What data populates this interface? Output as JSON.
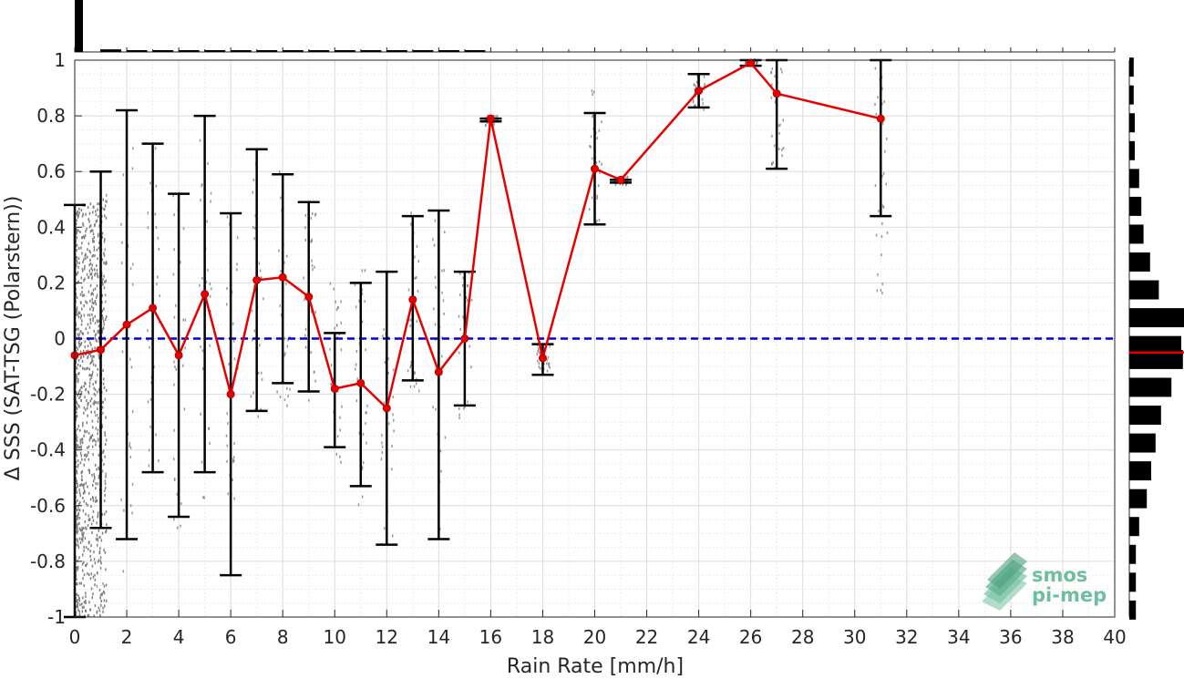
{
  "chart_data": {
    "type": "scatter",
    "xlabel": "Rain Rate [mm/h]",
    "ylabel": "Δ SSS (SAT-TSG (Polarstern))",
    "xlim": [
      0,
      40
    ],
    "ylim": [
      -1,
      1
    ],
    "x_ticks": [
      "0",
      "2",
      "4",
      "6",
      "8",
      "10",
      "12",
      "14",
      "16",
      "18",
      "20",
      "22",
      "24",
      "26",
      "28",
      "30",
      "32",
      "34",
      "36",
      "38",
      "40"
    ],
    "y_ticks": [
      "-1",
      "-0.8",
      "-0.6",
      "-0.4",
      "-0.2",
      "0",
      "0.2",
      "0.4",
      "0.6",
      "0.8",
      "1"
    ],
    "grid": true,
    "zero_line": {
      "y": 0,
      "color": "#0000dd",
      "style": "dashed"
    },
    "series": [
      {
        "color": "#e60000",
        "points": [
          {
            "x": 0,
            "y": -0.06,
            "lo": -1.0,
            "hi": 0.48
          },
          {
            "x": 1,
            "y": -0.04,
            "lo": -0.68,
            "hi": 0.6
          },
          {
            "x": 2,
            "y": 0.05,
            "lo": -0.72,
            "hi": 0.82
          },
          {
            "x": 3,
            "y": 0.11,
            "lo": -0.48,
            "hi": 0.7
          },
          {
            "x": 4,
            "y": -0.06,
            "lo": -0.64,
            "hi": 0.52
          },
          {
            "x": 5,
            "y": 0.16,
            "lo": -0.48,
            "hi": 0.8
          },
          {
            "x": 6,
            "y": -0.2,
            "lo": -0.85,
            "hi": 0.45
          },
          {
            "x": 7,
            "y": 0.21,
            "lo": -0.26,
            "hi": 0.68
          },
          {
            "x": 8,
            "y": 0.22,
            "lo": -0.16,
            "hi": 0.59
          },
          {
            "x": 9,
            "y": 0.15,
            "lo": -0.19,
            "hi": 0.49
          },
          {
            "x": 10,
            "y": -0.18,
            "lo": -0.39,
            "hi": 0.02
          },
          {
            "x": 11,
            "y": -0.16,
            "lo": -0.53,
            "hi": 0.2
          },
          {
            "x": 12,
            "y": -0.25,
            "lo": -0.74,
            "hi": 0.24
          },
          {
            "x": 13,
            "y": 0.14,
            "lo": -0.15,
            "hi": 0.44
          },
          {
            "x": 14,
            "y": -0.12,
            "lo": -0.72,
            "hi": 0.46
          },
          {
            "x": 15,
            "y": 0.0,
            "lo": -0.24,
            "hi": 0.24
          },
          {
            "x": 16,
            "y": 0.79,
            "lo": 0.78,
            "hi": 0.79
          },
          {
            "x": 18,
            "y": -0.07,
            "lo": -0.13,
            "hi": -0.02
          },
          {
            "x": 20,
            "y": 0.61,
            "lo": 0.41,
            "hi": 0.81
          },
          {
            "x": 21,
            "y": 0.57,
            "lo": 0.56,
            "hi": 0.57
          },
          {
            "x": 24,
            "y": 0.89,
            "lo": 0.83,
            "hi": 0.95
          },
          {
            "x": 26,
            "y": 0.99,
            "lo": 0.98,
            "hi": 1.0
          },
          {
            "x": 27,
            "y": 0.88,
            "lo": 0.61,
            "hi": 1.0
          },
          {
            "x": 31,
            "y": 0.79,
            "lo": 0.44,
            "hi": 1.0
          }
        ]
      }
    ],
    "scatter_background": {
      "color": "#808080",
      "dense_region": {
        "x": [
          0,
          1.2
        ],
        "y": [
          -1,
          0.5
        ]
      },
      "columns": [
        {
          "x": 1,
          "y": [
            -0.9,
            0.55
          ]
        },
        {
          "x": 2,
          "y": [
            -0.85,
            0.7
          ]
        },
        {
          "x": 3,
          "y": [
            -0.6,
            0.7
          ]
        },
        {
          "x": 4,
          "y": [
            -0.7,
            0.55
          ]
        },
        {
          "x": 5,
          "y": [
            -0.6,
            0.75
          ]
        },
        {
          "x": 6,
          "y": [
            -0.6,
            0.45
          ]
        },
        {
          "x": 7,
          "y": [
            -0.3,
            0.65
          ]
        },
        {
          "x": 8,
          "y": [
            -0.25,
            0.6
          ]
        },
        {
          "x": 9,
          "y": [
            -0.25,
            0.5
          ]
        },
        {
          "x": 10,
          "y": [
            -0.45,
            0.2
          ]
        },
        {
          "x": 11,
          "y": [
            -0.6,
            0.25
          ]
        },
        {
          "x": 12,
          "y": [
            -0.75,
            0.25
          ]
        },
        {
          "x": 13,
          "y": [
            -0.2,
            0.45
          ]
        },
        {
          "x": 14,
          "y": [
            -0.75,
            0.45
          ]
        },
        {
          "x": 15,
          "y": [
            -0.3,
            0.25
          ]
        },
        {
          "x": 16,
          "y": [
            0.76,
            0.8
          ]
        },
        {
          "x": 18,
          "y": [
            -0.12,
            -0.02
          ]
        },
        {
          "x": 20,
          "y": [
            0.4,
            0.9
          ]
        },
        {
          "x": 21,
          "y": [
            0.55,
            0.58
          ]
        },
        {
          "x": 24,
          "y": [
            0.82,
            0.95
          ]
        },
        {
          "x": 26,
          "y": [
            0.98,
            1.0
          ]
        },
        {
          "x": 27,
          "y": [
            0.6,
            1.0
          ]
        },
        {
          "x": 31,
          "y": [
            0.15,
            1.0
          ]
        }
      ]
    },
    "top_histogram": {
      "bins": [
        0,
        1,
        2,
        3,
        4,
        5,
        6,
        7,
        8,
        9,
        10,
        11,
        12,
        13,
        14,
        15
      ],
      "relative_counts": [
        1.0,
        0.05,
        0.03,
        0.02,
        0.015,
        0.012,
        0.01,
        0.008,
        0.007,
        0.006,
        0.005,
        0.004,
        0.004,
        0.003,
        0.003,
        0.002
      ]
    },
    "right_histogram": {
      "bin_centers": [
        0.975,
        0.875,
        0.775,
        0.675,
        0.575,
        0.475,
        0.375,
        0.275,
        0.175,
        0.075,
        -0.025,
        -0.075,
        -0.175,
        -0.275,
        -0.375,
        -0.475,
        -0.575,
        -0.675,
        -0.775,
        -0.875,
        -0.975
      ],
      "relative_counts": [
        0.08,
        0.08,
        0.1,
        0.1,
        0.18,
        0.22,
        0.26,
        0.38,
        0.54,
        1.0,
        0.95,
        0.98,
        0.77,
        0.58,
        0.48,
        0.4,
        0.32,
        0.18,
        0.12,
        0.12,
        0.12
      ],
      "mean_marker": {
        "y": -0.05,
        "color": "#e60000"
      }
    },
    "watermark": "smos pi-mep",
    "watermark_lines": [
      "smos",
      "pi-mep"
    ]
  }
}
